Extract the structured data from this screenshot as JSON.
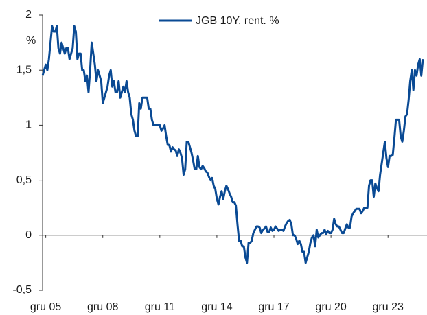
{
  "chart_data": {
    "type": "line",
    "unit": "%",
    "x": [
      "2005-10",
      "2005-11",
      "2005-12",
      "2006-01",
      "2006-02",
      "2006-03",
      "2006-04",
      "2006-05",
      "2006-06",
      "2006-07",
      "2006-08",
      "2006-09",
      "2006-10",
      "2006-11",
      "2006-12",
      "2007-01",
      "2007-02",
      "2007-03",
      "2007-04",
      "2007-05",
      "2007-06",
      "2007-07",
      "2007-08",
      "2007-09",
      "2007-10",
      "2007-11",
      "2007-12",
      "2008-01",
      "2008-02",
      "2008-03",
      "2008-04",
      "2008-05",
      "2008-06",
      "2008-07",
      "2008-08",
      "2008-09",
      "2008-10",
      "2008-11",
      "2008-12",
      "2009-01",
      "2009-02",
      "2009-03",
      "2009-04",
      "2009-05",
      "2009-06",
      "2009-07",
      "2009-08",
      "2009-09",
      "2009-10",
      "2009-11",
      "2009-12",
      "2010-01",
      "2010-02",
      "2010-03",
      "2010-04",
      "2010-05",
      "2010-06",
      "2010-07",
      "2010-08",
      "2010-09",
      "2010-10",
      "2010-11",
      "2010-12",
      "2011-01",
      "2011-02",
      "2011-03",
      "2011-04",
      "2011-05",
      "2011-06",
      "2011-07",
      "2011-08",
      "2011-09",
      "2011-10",
      "2011-11",
      "2011-12",
      "2012-01",
      "2012-02",
      "2012-03",
      "2012-04",
      "2012-05",
      "2012-06",
      "2012-07",
      "2012-08",
      "2012-09",
      "2012-10",
      "2012-11",
      "2012-12",
      "2013-01",
      "2013-02",
      "2013-03",
      "2013-04",
      "2013-05",
      "2013-06",
      "2013-07",
      "2013-08",
      "2013-09",
      "2013-10",
      "2013-11",
      "2013-12",
      "2014-01",
      "2014-02",
      "2014-03",
      "2014-04",
      "2014-05",
      "2014-06",
      "2014-07",
      "2014-08",
      "2014-09",
      "2014-10",
      "2014-11",
      "2014-12",
      "2015-01",
      "2015-02",
      "2015-03",
      "2015-04",
      "2015-05",
      "2015-06",
      "2015-07",
      "2015-08",
      "2015-09",
      "2015-10",
      "2015-11",
      "2015-12",
      "2016-01",
      "2016-02",
      "2016-03",
      "2016-04",
      "2016-05",
      "2016-06",
      "2016-07",
      "2016-08",
      "2016-09",
      "2016-10",
      "2016-11",
      "2016-12",
      "2017-01",
      "2017-02",
      "2017-03",
      "2017-04",
      "2017-05",
      "2017-06",
      "2017-07",
      "2017-08",
      "2017-09",
      "2017-10",
      "2017-11",
      "2017-12",
      "2018-01",
      "2018-02",
      "2018-03",
      "2018-04",
      "2018-05",
      "2018-06",
      "2018-07",
      "2018-08",
      "2018-09",
      "2018-10",
      "2018-11",
      "2018-12",
      "2019-01",
      "2019-02",
      "2019-03",
      "2019-04",
      "2019-05",
      "2019-06",
      "2019-07",
      "2019-08",
      "2019-09",
      "2019-10",
      "2019-11",
      "2019-12",
      "2020-01",
      "2020-02",
      "2020-03",
      "2020-04",
      "2020-05",
      "2020-06",
      "2020-07",
      "2020-08",
      "2020-09",
      "2020-10",
      "2020-11",
      "2020-12",
      "2021-01",
      "2021-02",
      "2021-03",
      "2021-04",
      "2021-05",
      "2021-06",
      "2021-07",
      "2021-08",
      "2021-09",
      "2021-10",
      "2021-11",
      "2021-12",
      "2022-01",
      "2022-02",
      "2022-03",
      "2022-04",
      "2022-05",
      "2022-06",
      "2022-07",
      "2022-08",
      "2022-09",
      "2022-10",
      "2022-11",
      "2022-12",
      "2023-01",
      "2023-02",
      "2023-03",
      "2023-04",
      "2023-05",
      "2023-06",
      "2023-07",
      "2023-08",
      "2023-09",
      "2023-10",
      "2023-11",
      "2023-12",
      "2024-01",
      "2024-02",
      "2024-03",
      "2024-04",
      "2024-05",
      "2024-06",
      "2024-07",
      "2024-08",
      "2024-09",
      "2024-10",
      "2024-11",
      "2024-12",
      "2025-01",
      "2025-02",
      "2025-03",
      "2025-04",
      "2025-05",
      "2025-06",
      "2025-07",
      "2025-08",
      "2025-09",
      "2025-10"
    ],
    "series": [
      {
        "name": "JGB 10Y, rent. %",
        "color": "#0a4a94",
        "values": [
          1.45,
          1.5,
          1.55,
          1.5,
          1.6,
          1.75,
          1.9,
          1.85,
          1.85,
          1.9,
          1.7,
          1.65,
          1.75,
          1.7,
          1.65,
          1.7,
          1.7,
          1.6,
          1.65,
          1.7,
          1.9,
          1.85,
          1.6,
          1.65,
          1.65,
          1.5,
          1.5,
          1.4,
          1.45,
          1.3,
          1.5,
          1.75,
          1.65,
          1.55,
          1.4,
          1.5,
          1.45,
          1.4,
          1.2,
          1.25,
          1.3,
          1.35,
          1.45,
          1.5,
          1.35,
          1.4,
          1.3,
          1.3,
          1.4,
          1.25,
          1.3,
          1.35,
          1.3,
          1.4,
          1.3,
          1.25,
          1.1,
          1.05,
          0.95,
          0.9,
          0.9,
          1.2,
          1.15,
          1.25,
          1.25,
          1.25,
          1.25,
          1.15,
          1.15,
          1.05,
          1.0,
          1.0,
          1.0,
          1.0,
          1.0,
          0.95,
          0.97,
          1.0,
          0.9,
          0.82,
          0.82,
          0.76,
          0.8,
          0.78,
          0.77,
          0.72,
          0.78,
          0.75,
          0.7,
          0.55,
          0.6,
          0.85,
          0.85,
          0.8,
          0.75,
          0.68,
          0.6,
          0.6,
          0.72,
          0.62,
          0.6,
          0.63,
          0.61,
          0.58,
          0.57,
          0.53,
          0.5,
          0.52,
          0.45,
          0.42,
          0.33,
          0.28,
          0.35,
          0.4,
          0.33,
          0.4,
          0.45,
          0.42,
          0.38,
          0.35,
          0.3,
          0.3,
          0.27,
          0.1,
          -0.05,
          -0.05,
          -0.1,
          -0.1,
          -0.2,
          -0.25,
          -0.07,
          -0.07,
          -0.05,
          0.02,
          0.05,
          0.08,
          0.08,
          0.07,
          0.02,
          0.05,
          0.06,
          0.08,
          0.03,
          0.03,
          0.07,
          0.04,
          0.05,
          0.08,
          0.06,
          0.04,
          0.05,
          0.05,
          0.04,
          0.08,
          0.11,
          0.13,
          0.14,
          0.1,
          0.0,
          0.0,
          -0.03,
          -0.08,
          -0.05,
          -0.08,
          -0.15,
          -0.15,
          -0.25,
          -0.2,
          -0.15,
          -0.07,
          -0.02,
          0.0,
          -0.1,
          0.05,
          -0.02,
          0.0,
          0.02,
          0.02,
          0.05,
          0.01,
          0.04,
          0.02,
          0.02,
          0.05,
          0.15,
          0.1,
          0.08,
          0.08,
          0.05,
          0.02,
          0.02,
          0.06,
          0.1,
          0.07,
          0.07,
          0.17,
          0.2,
          0.22,
          0.24,
          0.24,
          0.24,
          0.2,
          0.22,
          0.25,
          0.25,
          0.25,
          0.45,
          0.5,
          0.5,
          0.35,
          0.47,
          0.43,
          0.4,
          0.55,
          0.65,
          0.75,
          0.85,
          0.7,
          0.62,
          0.72,
          0.72,
          0.73,
          0.88,
          1.05,
          1.05,
          1.05,
          0.9,
          0.85,
          0.95,
          1.08,
          1.1,
          1.23,
          1.4,
          1.5,
          1.32,
          1.5,
          1.45,
          1.55,
          1.6,
          1.45,
          1.6
        ]
      }
    ],
    "xlim": [
      "2005-10",
      "2025-10"
    ],
    "xticks": [
      {
        "value": "2005-12",
        "label": "gru 05"
      },
      {
        "value": "2008-12",
        "label": "gru 08"
      },
      {
        "value": "2011-12",
        "label": "gru 11"
      },
      {
        "value": "2014-12",
        "label": "gru 14"
      },
      {
        "value": "2017-12",
        "label": "gru 17"
      },
      {
        "value": "2020-12",
        "label": "gru 20"
      },
      {
        "value": "2023-12",
        "label": "gru 23"
      }
    ],
    "ylim": [
      -0.5,
      2
    ],
    "yticks": [
      {
        "value": -0.5,
        "label": "-0,5"
      },
      0,
      {
        "value": 0.5,
        "label": "0,5"
      },
      1,
      {
        "value": 1.5,
        "label": "1,5"
      },
      2
    ],
    "legend": "top"
  }
}
